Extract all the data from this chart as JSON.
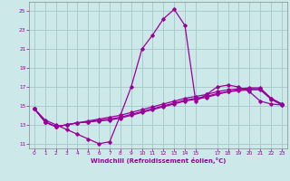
{
  "xlabel": "Windchill (Refroidissement éolien,°C)",
  "bg_color": "#cce8e8",
  "grid_color": "#aacccc",
  "line_color": "#990099",
  "xlim": [
    -0.5,
    23.5
  ],
  "ylim": [
    10.5,
    26.0
  ],
  "xticks": [
    0,
    1,
    2,
    3,
    4,
    5,
    6,
    7,
    8,
    9,
    10,
    11,
    12,
    13,
    14,
    15,
    17,
    18,
    19,
    20,
    21,
    22,
    23
  ],
  "yticks": [
    11,
    13,
    15,
    17,
    19,
    21,
    23,
    25
  ],
  "series": [
    [
      14.7,
      13.5,
      13.0,
      12.5,
      12.0,
      11.5,
      11.0,
      11.2,
      14.0,
      17.0,
      21.0,
      22.5,
      24.2,
      25.2,
      23.5,
      15.5,
      16.2,
      17.0,
      17.2,
      17.0,
      16.5,
      15.5,
      15.2,
      15.1
    ],
    [
      14.7,
      13.3,
      12.8,
      13.0,
      13.2,
      13.4,
      13.6,
      13.8,
      14.0,
      14.3,
      14.6,
      14.9,
      15.2,
      15.5,
      15.8,
      16.0,
      16.2,
      16.5,
      16.7,
      16.8,
      16.9,
      16.9,
      15.8,
      15.2
    ],
    [
      14.7,
      13.3,
      12.8,
      13.0,
      13.2,
      13.3,
      13.4,
      13.5,
      13.7,
      14.0,
      14.3,
      14.6,
      14.9,
      15.2,
      15.5,
      15.7,
      15.9,
      16.2,
      16.5,
      16.7,
      16.8,
      16.8,
      15.8,
      15.2
    ],
    [
      14.7,
      13.3,
      12.8,
      13.0,
      13.2,
      13.3,
      13.5,
      13.6,
      13.8,
      14.1,
      14.4,
      14.7,
      15.0,
      15.3,
      15.6,
      15.8,
      16.0,
      16.3,
      16.5,
      16.6,
      16.7,
      16.7,
      15.7,
      15.1
    ]
  ]
}
